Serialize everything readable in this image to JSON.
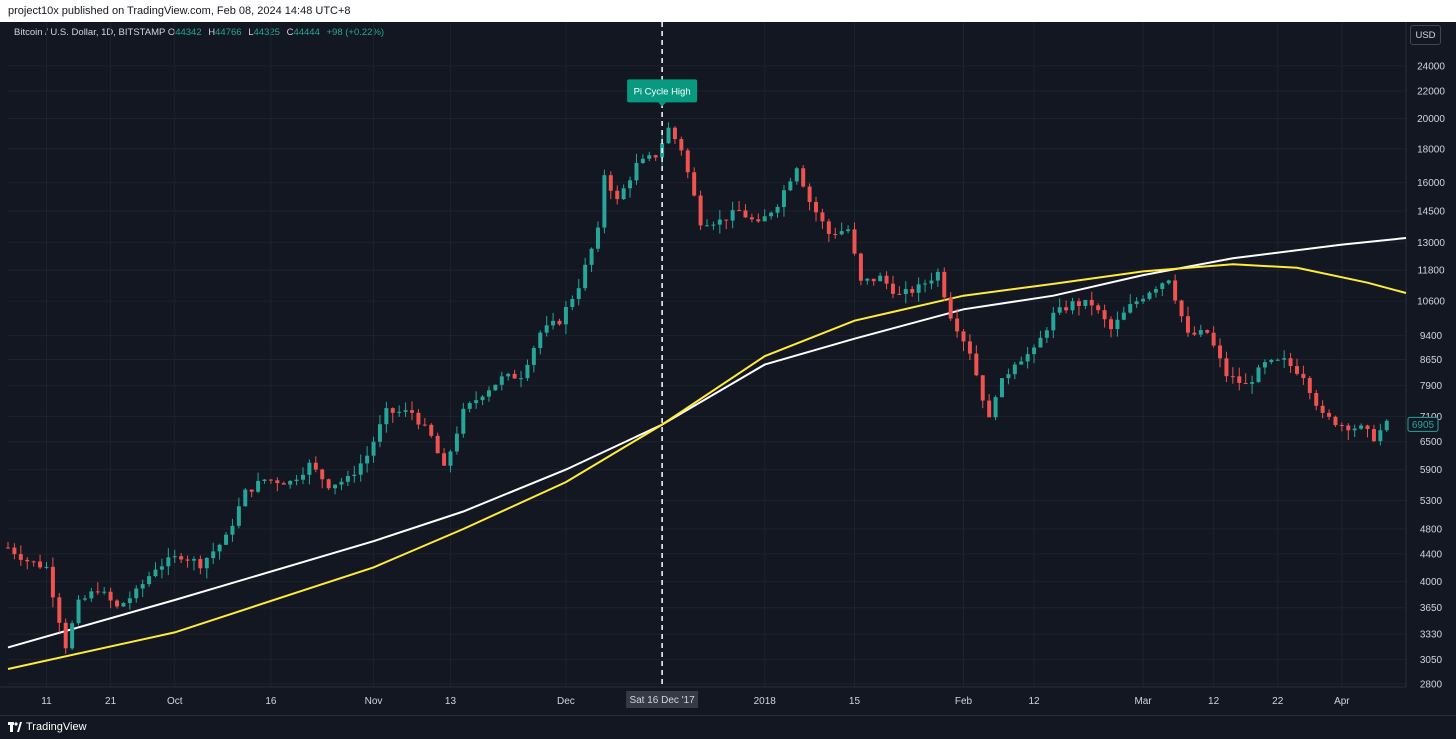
{
  "publisher": "project10x published on TradingView.com, Feb 08, 2024 14:48 UTC+8",
  "footer": {
    "brand": "TradingView"
  },
  "legend": {
    "symbol": "Bitcoin / U.S. Dollar, 1D, BITSTAMP",
    "open_label": "O",
    "open": "44342",
    "high_label": "H",
    "high": "44766",
    "low_label": "L",
    "low": "44325",
    "close_label": "C",
    "close": "44444",
    "change": "+98 (+0.22%)"
  },
  "currency_button": "USD",
  "colors": {
    "background": "#131722",
    "up": "#26a69a",
    "down": "#ef5350",
    "ma_white": "#ffffff",
    "ma_yellow": "#ffeb3b",
    "annotation": "#089981"
  },
  "chart_data": {
    "type": "candlestick",
    "y_scale": "log",
    "ylim": [
      2750,
      27000
    ],
    "y_ticks": [
      2800,
      3050,
      3330,
      3650,
      4000,
      4400,
      4800,
      5300,
      5900,
      6500,
      7100,
      7900,
      8650,
      9400,
      10600,
      11800,
      13000,
      14500,
      16000,
      18000,
      20000,
      22000,
      24000
    ],
    "y_tick_labels": [
      "2800",
      "3050",
      "3330",
      "3650",
      "4000",
      "4400",
      "4800",
      "5300",
      "5900",
      "6500",
      "7100",
      "7900",
      "8650",
      "9400",
      "10600",
      "11800",
      "13000",
      "14500",
      "16000",
      "18000",
      "20000",
      "22000",
      "24000"
    ],
    "x_range": [
      "2017-09-05",
      "2018-04-11"
    ],
    "x_ticks": [
      {
        "date": "2017-09-11",
        "label": "11"
      },
      {
        "date": "2017-09-21",
        "label": "21"
      },
      {
        "date": "2017-10-01",
        "label": "Oct"
      },
      {
        "date": "2017-10-16",
        "label": "16"
      },
      {
        "date": "2017-11-01",
        "label": "Nov"
      },
      {
        "date": "2017-11-13",
        "label": "13"
      },
      {
        "date": "2017-12-01",
        "label": "Dec"
      },
      {
        "date": "2018-01-01",
        "label": "2018"
      },
      {
        "date": "2018-01-15",
        "label": "15"
      },
      {
        "date": "2018-02-01",
        "label": "Feb"
      },
      {
        "date": "2018-02-12",
        "label": "12"
      },
      {
        "date": "2018-03-01",
        "label": "Mar"
      },
      {
        "date": "2018-03-12",
        "label": "12"
      },
      {
        "date": "2018-03-22",
        "label": "22"
      },
      {
        "date": "2018-04-01",
        "label": "Apr"
      }
    ],
    "crosshair": {
      "date": "2017-12-16",
      "label": "Sat 16 Dec '17"
    },
    "annotation": {
      "date": "2017-12-16",
      "price": 20500,
      "text": "Pi Cycle High"
    },
    "last_price": {
      "value": 6905,
      "label": "6905"
    },
    "price_path": [
      [
        "2017-09-05",
        4500
      ],
      [
        "2017-09-08",
        4300
      ],
      [
        "2017-09-11",
        4200
      ],
      [
        "2017-09-14",
        3200
      ],
      [
        "2017-09-16",
        3700
      ],
      [
        "2017-09-19",
        3900
      ],
      [
        "2017-09-22",
        3650
      ],
      [
        "2017-09-25",
        3850
      ],
      [
        "2017-09-28",
        4200
      ],
      [
        "2017-10-02",
        4380
      ],
      [
        "2017-10-05",
        4250
      ],
      [
        "2017-10-09",
        4650
      ],
      [
        "2017-10-12",
        5450
      ],
      [
        "2017-10-15",
        5700
      ],
      [
        "2017-10-19",
        5650
      ],
      [
        "2017-10-22",
        6000
      ],
      [
        "2017-10-25",
        5600
      ],
      [
        "2017-10-28",
        5700
      ],
      [
        "2017-10-31",
        6200
      ],
      [
        "2017-11-03",
        7200
      ],
      [
        "2017-11-07",
        7200
      ],
      [
        "2017-11-10",
        6600
      ],
      [
        "2017-11-12",
        5900
      ],
      [
        "2017-11-15",
        7200
      ],
      [
        "2017-11-18",
        7700
      ],
      [
        "2017-11-21",
        8100
      ],
      [
        "2017-11-24",
        8200
      ],
      [
        "2017-11-27",
        9500
      ],
      [
        "2017-11-30",
        9900
      ],
      [
        "2017-12-03",
        11200
      ],
      [
        "2017-12-06",
        13500
      ],
      [
        "2017-12-07",
        16500
      ],
      [
        "2017-12-09",
        15000
      ],
      [
        "2017-12-12",
        17000
      ],
      [
        "2017-12-15",
        17600
      ],
      [
        "2017-12-17",
        19300
      ],
      [
        "2017-12-19",
        18000
      ],
      [
        "2017-12-22",
        14000
      ],
      [
        "2017-12-25",
        14000
      ],
      [
        "2017-12-28",
        14500
      ],
      [
        "2017-12-31",
        13800
      ],
      [
        "2018-01-03",
        14900
      ],
      [
        "2018-01-06",
        17000
      ],
      [
        "2018-01-08",
        15000
      ],
      [
        "2018-01-11",
        13400
      ],
      [
        "2018-01-14",
        13600
      ],
      [
        "2018-01-16",
        11300
      ],
      [
        "2018-01-19",
        11500
      ],
      [
        "2018-01-22",
        10800
      ],
      [
        "2018-01-25",
        11100
      ],
      [
        "2018-01-28",
        11700
      ],
      [
        "2018-01-30",
        10100
      ],
      [
        "2018-02-02",
        8900
      ],
      [
        "2018-02-05",
        7000
      ],
      [
        "2018-02-06",
        7700
      ],
      [
        "2018-02-09",
        8600
      ],
      [
        "2018-02-12",
        8900
      ],
      [
        "2018-02-15",
        10100
      ],
      [
        "2018-02-18",
        10500
      ],
      [
        "2018-02-21",
        10500
      ],
      [
        "2018-02-24",
        9600
      ],
      [
        "2018-02-27",
        10400
      ],
      [
        "2018-03-02",
        11000
      ],
      [
        "2018-03-05",
        11500
      ],
      [
        "2018-03-08",
        9400
      ],
      [
        "2018-03-11",
        9500
      ],
      [
        "2018-03-14",
        8200
      ],
      [
        "2018-03-17",
        7900
      ],
      [
        "2018-03-20",
        8500
      ],
      [
        "2018-03-23",
        8600
      ],
      [
        "2018-03-26",
        8200
      ],
      [
        "2018-03-29",
        7100
      ],
      [
        "2018-04-01",
        6900
      ],
      [
        "2018-04-04",
        6800
      ],
      [
        "2018-04-06",
        6600
      ],
      [
        "2018-04-08",
        6905
      ]
    ],
    "ma_white": [
      [
        "2017-09-05",
        3180
      ],
      [
        "2017-10-01",
        3750
      ],
      [
        "2017-11-01",
        4600
      ],
      [
        "2017-11-15",
        5100
      ],
      [
        "2017-12-01",
        5900
      ],
      [
        "2017-12-16",
        6900
      ],
      [
        "2018-01-01",
        8500
      ],
      [
        "2018-01-15",
        9300
      ],
      [
        "2018-02-01",
        10300
      ],
      [
        "2018-02-15",
        10800
      ],
      [
        "2018-03-01",
        11600
      ],
      [
        "2018-03-15",
        12300
      ],
      [
        "2018-04-01",
        12900
      ],
      [
        "2018-04-11",
        13200
      ]
    ],
    "ma_yellow": [
      [
        "2017-09-05",
        2950
      ],
      [
        "2017-10-01",
        3350
      ],
      [
        "2017-11-01",
        4200
      ],
      [
        "2017-11-15",
        4800
      ],
      [
        "2017-12-01",
        5650
      ],
      [
        "2017-12-16",
        6900
      ],
      [
        "2018-01-01",
        8750
      ],
      [
        "2018-01-15",
        9900
      ],
      [
        "2018-02-01",
        10800
      ],
      [
        "2018-02-15",
        11250
      ],
      [
        "2018-03-01",
        11750
      ],
      [
        "2018-03-15",
        12050
      ],
      [
        "2018-03-25",
        11900
      ],
      [
        "2018-04-05",
        11300
      ],
      [
        "2018-04-11",
        10900
      ]
    ]
  }
}
